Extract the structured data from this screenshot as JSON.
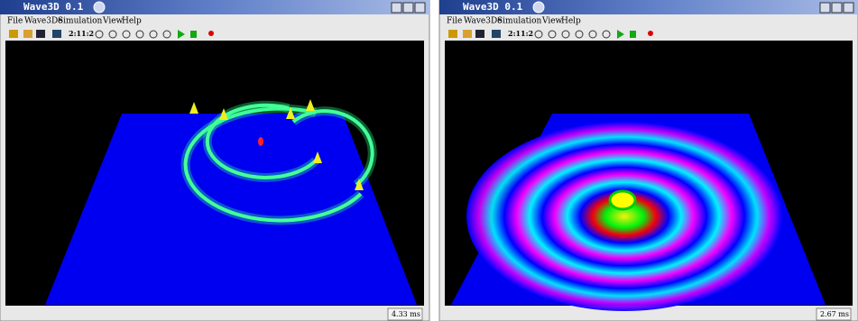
{
  "windows": [
    {
      "title": "Wave3D 0.1",
      "menu": [
        "File",
        "Wave3De",
        "Simulation",
        "View",
        "Help"
      ],
      "toolbar": [
        "2:1",
        "1:2"
      ],
      "status": "4.33 ms"
    },
    {
      "title": "Wave3D 0.1",
      "menu": [
        "File",
        "Wave3De",
        "Simulation",
        "View",
        "Help"
      ],
      "toolbar": [
        "2:1",
        "1:2"
      ],
      "status": "2.67 ms"
    }
  ]
}
